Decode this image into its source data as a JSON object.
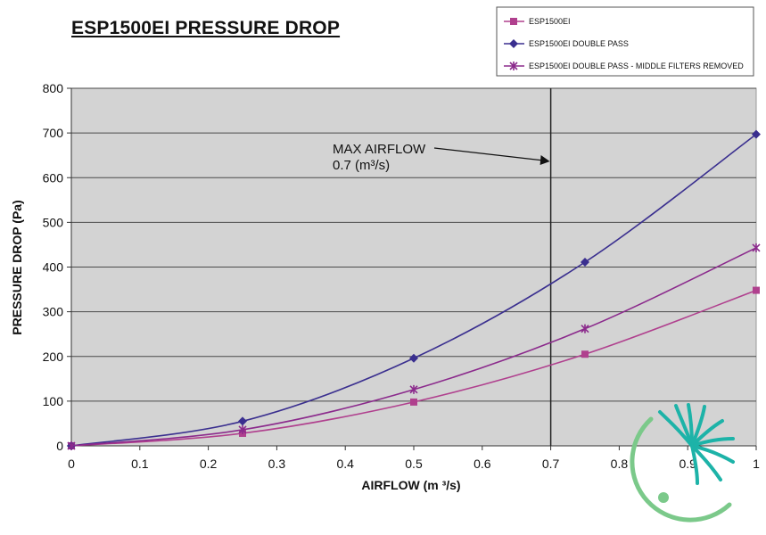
{
  "chart_data": {
    "type": "line",
    "title": "ESP1500EI PRESSURE DROP",
    "xlabel": "AIRFLOW (m ³/s)",
    "ylabel": "PRESSURE DROP (Pa)",
    "xlim": [
      0,
      1
    ],
    "ylim": [
      0,
      800
    ],
    "x_ticks": [
      0,
      0.1,
      0.2,
      0.3,
      0.4,
      0.5,
      0.6,
      0.7,
      0.8,
      0.9,
      1
    ],
    "y_ticks": [
      0,
      100,
      200,
      300,
      400,
      500,
      600,
      700,
      800
    ],
    "grid": "horizontal",
    "plot_background": "#d3d3d3",
    "legend_position": "top-right",
    "x": [
      0,
      0.25,
      0.5,
      0.75,
      1
    ],
    "series": [
      {
        "name": "ESP1500EI",
        "marker": "square",
        "color": "#b0408e",
        "values": [
          0,
          28,
          98,
          205,
          348
        ]
      },
      {
        "name": "ESP1500EI DOUBLE PASS",
        "marker": "diamond",
        "color": "#3a2f8f",
        "values": [
          0,
          55,
          196,
          411,
          697
        ]
      },
      {
        "name": "ESP1500EI DOUBLE PASS  - MIDDLE FILTERS REMOVED",
        "marker": "star",
        "color": "#8b2a8c",
        "values": [
          0,
          36,
          126,
          262,
          443
        ]
      }
    ],
    "annotations": [
      {
        "type": "vline",
        "x": 0.7,
        "line1": "MAX AIRFLOW",
        "line2": "0.7 (m³/s)"
      }
    ]
  },
  "logo": {
    "name": "company-logo",
    "colors": [
      "#1db3a8",
      "#7bc98a"
    ]
  }
}
